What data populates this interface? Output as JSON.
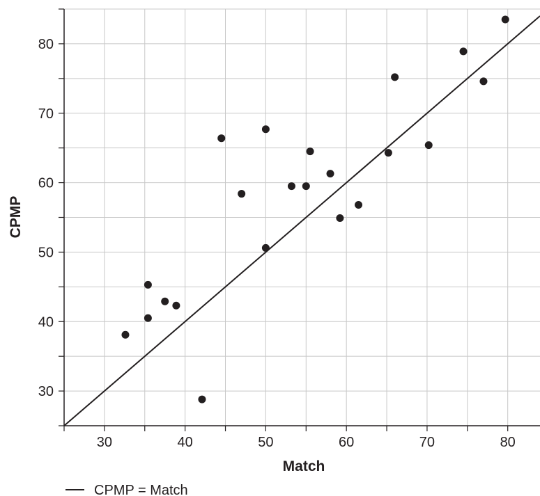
{
  "chart_data": {
    "type": "scatter",
    "xlabel": "Match",
    "ylabel": "CPMP",
    "xlim": [
      25,
      84
    ],
    "ylim": [
      25,
      85
    ],
    "x_ticks": [
      30,
      40,
      50,
      60,
      70,
      80
    ],
    "y_ticks": [
      30,
      40,
      50,
      60,
      70,
      80
    ],
    "x_tick_labels": [
      "30",
      "40",
      "50",
      "60",
      "70",
      "80"
    ],
    "y_tick_labels": [
      "30",
      "40",
      "50",
      "60",
      "70",
      "80"
    ],
    "grid": true,
    "points": [
      {
        "x": 32.6,
        "y": 38.1
      },
      {
        "x": 35.4,
        "y": 45.3
      },
      {
        "x": 35.4,
        "y": 40.5
      },
      {
        "x": 37.5,
        "y": 42.9
      },
      {
        "x": 38.9,
        "y": 42.3
      },
      {
        "x": 42.1,
        "y": 28.8
      },
      {
        "x": 44.5,
        "y": 66.4
      },
      {
        "x": 47.0,
        "y": 58.4
      },
      {
        "x": 50.0,
        "y": 67.7
      },
      {
        "x": 50.0,
        "y": 50.6
      },
      {
        "x": 53.2,
        "y": 59.5
      },
      {
        "x": 55.0,
        "y": 59.5
      },
      {
        "x": 55.5,
        "y": 64.5
      },
      {
        "x": 58.0,
        "y": 61.3
      },
      {
        "x": 59.2,
        "y": 54.9
      },
      {
        "x": 61.5,
        "y": 56.8
      },
      {
        "x": 65.2,
        "y": 64.3
      },
      {
        "x": 66.0,
        "y": 75.2
      },
      {
        "x": 70.2,
        "y": 65.4
      },
      {
        "x": 74.5,
        "y": 78.9
      },
      {
        "x": 77.0,
        "y": 74.6
      },
      {
        "x": 79.7,
        "y": 83.5
      }
    ],
    "reference_line": {
      "label": "CPMP = Match",
      "slope": 1,
      "intercept": 0
    },
    "legend_position": "bottom-left",
    "colors": {
      "points": "#231f20",
      "line": "#231f20",
      "grid": "#c8c8c8",
      "text": "#231f20"
    }
  }
}
